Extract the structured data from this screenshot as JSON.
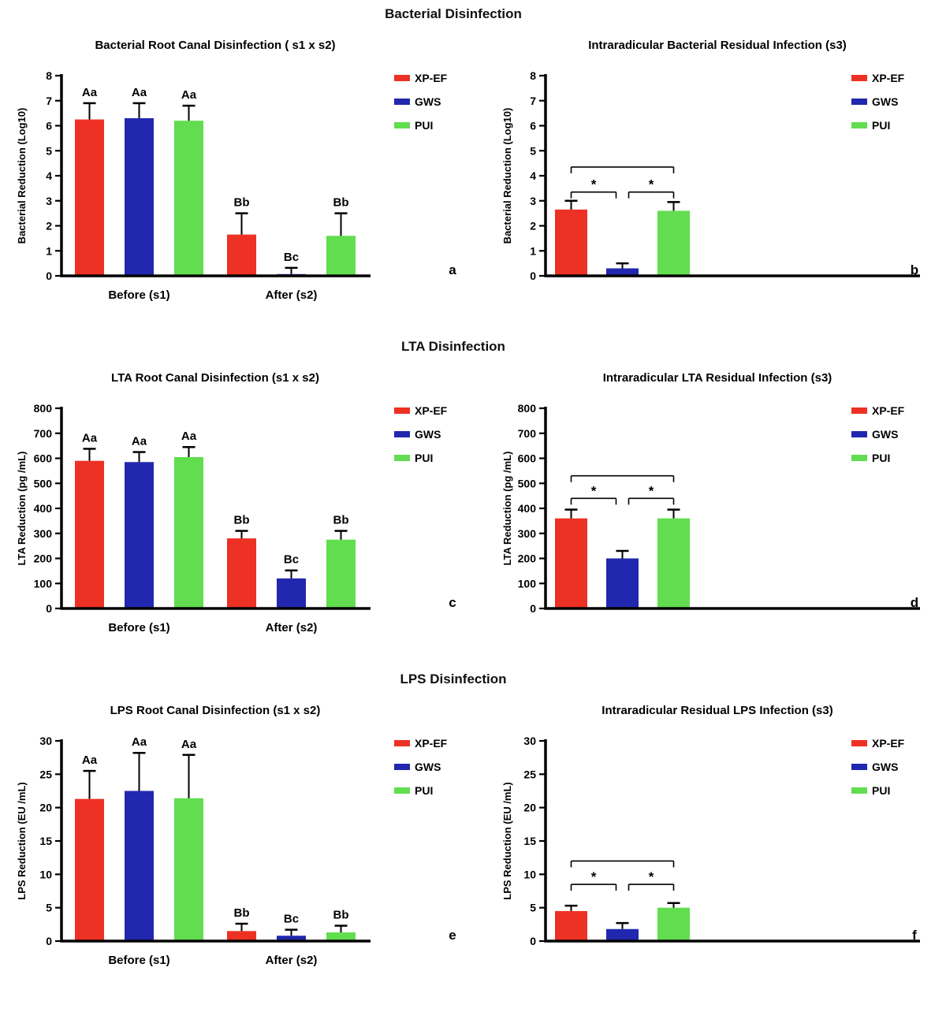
{
  "figure": {
    "sections": [
      {
        "header": "Bacterial Disinfection"
      },
      {
        "header": "LTA Disinfection"
      },
      {
        "header": "LPS Disinfection"
      }
    ]
  },
  "colors": {
    "xp_ef": "#ed3124",
    "gws": "#2127ae",
    "pui": "#61dd4f",
    "axis": "#000000"
  },
  "legend_items": [
    {
      "label": "XP-EF",
      "color": "xp_ef"
    },
    {
      "label": "GWS",
      "color": "gws"
    },
    {
      "label": "PUI",
      "color": "pui"
    }
  ],
  "chart_data": [
    {
      "id": "a",
      "type": "bar",
      "kind": "grouped",
      "title": "Bacterial Root  Canal Disinfection ( s1 x s2)",
      "ylabel": "Bacterial Reduction (Log10)",
      "ylim": [
        0,
        8
      ],
      "yticks": [
        0,
        1,
        2,
        3,
        4,
        5,
        6,
        7,
        8
      ],
      "categories": [
        "Before (s1)",
        "After (s2)"
      ],
      "series": [
        {
          "name": "XP-EF",
          "color": "xp_ef",
          "values": [
            6.25,
            1.65
          ],
          "errors": [
            0.65,
            0.85
          ],
          "labels": [
            "Aa",
            "Bb"
          ]
        },
        {
          "name": "GWS",
          "color": "gws",
          "values": [
            6.3,
            0.07
          ],
          "errors": [
            0.6,
            0.25
          ],
          "labels": [
            "Aa",
            "Bc"
          ]
        },
        {
          "name": "PUI",
          "color": "pui",
          "values": [
            6.2,
            1.6
          ],
          "errors": [
            0.6,
            0.9
          ],
          "labels": [
            "Aa",
            "Bb"
          ]
        }
      ],
      "panel_label": "a",
      "legend_position": "right"
    },
    {
      "id": "b",
      "type": "bar",
      "kind": "single",
      "title": "Intraradicular Bacterial Residual Infection (s3)",
      "ylabel": "Bacterial Reduction (Log10)",
      "ylim": [
        0,
        8
      ],
      "yticks": [
        0,
        1,
        2,
        3,
        4,
        5,
        6,
        7,
        8
      ],
      "categories": [
        "XP-EF",
        "GWS",
        "PUI"
      ],
      "values": [
        2.65,
        0.3,
        2.6
      ],
      "errors": [
        0.35,
        0.2,
        0.35
      ],
      "bar_colors": [
        "xp_ef",
        "gws",
        "pui"
      ],
      "brackets": [
        {
          "from": 0,
          "to": 2,
          "y": 4.35,
          "label": ""
        },
        {
          "from": 0,
          "to": 1,
          "y": 3.35,
          "label": "*"
        },
        {
          "from": 1,
          "to": 2,
          "y": 3.35,
          "label": "*"
        }
      ],
      "panel_label": "b",
      "legend_position": "right"
    },
    {
      "id": "c",
      "type": "bar",
      "kind": "grouped",
      "title": "LTA  Root  Canal Disinfection (s1 x s2)",
      "ylabel": "LTA Reduction (pg /mL)",
      "ylim": [
        0,
        800
      ],
      "yticks": [
        0,
        100,
        200,
        300,
        400,
        500,
        600,
        700,
        800
      ],
      "categories": [
        "Before (s1)",
        "After (s2)"
      ],
      "series": [
        {
          "name": "XP-EF",
          "color": "xp_ef",
          "values": [
            590,
            280
          ],
          "errors": [
            48,
            30
          ],
          "labels": [
            "Aa",
            "Bb"
          ]
        },
        {
          "name": "GWS",
          "color": "gws",
          "values": [
            585,
            120
          ],
          "errors": [
            40,
            32
          ],
          "labels": [
            "Aa",
            "Bc"
          ]
        },
        {
          "name": "PUI",
          "color": "pui",
          "values": [
            605,
            275
          ],
          "errors": [
            40,
            35
          ],
          "labels": [
            "Aa",
            "Bb"
          ]
        }
      ],
      "panel_label": "c",
      "legend_position": "right"
    },
    {
      "id": "d",
      "type": "bar",
      "kind": "single",
      "title": "Intraradicular  LTA Residual Infection (s3)",
      "ylabel": "LTA Reduction (pg /mL)",
      "ylim": [
        0,
        800
      ],
      "yticks": [
        0,
        100,
        200,
        300,
        400,
        500,
        600,
        700,
        800
      ],
      "categories": [
        "XP-EF",
        "GWS",
        "PUI"
      ],
      "values": [
        360,
        200,
        360
      ],
      "errors": [
        35,
        30,
        35
      ],
      "bar_colors": [
        "xp_ef",
        "gws",
        "pui"
      ],
      "brackets": [
        {
          "from": 0,
          "to": 2,
          "y": 530,
          "label": ""
        },
        {
          "from": 0,
          "to": 1,
          "y": 440,
          "label": "*"
        },
        {
          "from": 1,
          "to": 2,
          "y": 440,
          "label": "*"
        }
      ],
      "panel_label": "d",
      "legend_position": "right"
    },
    {
      "id": "e",
      "type": "bar",
      "kind": "grouped",
      "title": "LPS Root Canal Disinfection (s1 x s2)",
      "ylabel": "LPS  Reduction (EU /mL)",
      "ylim": [
        0,
        30
      ],
      "yticks": [
        0,
        5,
        10,
        15,
        20,
        25,
        30
      ],
      "categories": [
        "Before (s1)",
        "After (s2)"
      ],
      "series": [
        {
          "name": "XP-EF",
          "color": "xp_ef",
          "values": [
            21.3,
            1.5
          ],
          "errors": [
            4.2,
            1.1
          ],
          "labels": [
            "Aa",
            "Bb"
          ]
        },
        {
          "name": "GWS",
          "color": "gws",
          "values": [
            22.5,
            0.8
          ],
          "errors": [
            5.7,
            0.9
          ],
          "labels": [
            "Aa",
            "Bc"
          ]
        },
        {
          "name": "PUI",
          "color": "pui",
          "values": [
            21.4,
            1.3
          ],
          "errors": [
            6.5,
            1.0
          ],
          "labels": [
            "Aa",
            "Bb"
          ]
        }
      ],
      "panel_label": "e",
      "legend_position": "right"
    },
    {
      "id": "f",
      "type": "bar",
      "kind": "single",
      "title": "Intraradicular Residual LPS Infection (s3)",
      "ylabel": "LPS  Reduction (EU /mL)",
      "ylim": [
        0,
        30
      ],
      "yticks": [
        0,
        5,
        10,
        15,
        20,
        25,
        30
      ],
      "categories": [
        "XP-EF",
        "GWS",
        "PUI"
      ],
      "values": [
        4.5,
        1.8,
        5.0
      ],
      "errors": [
        0.8,
        0.9,
        0.7
      ],
      "bar_colors": [
        "xp_ef",
        "gws",
        "pui"
      ],
      "brackets": [
        {
          "from": 0,
          "to": 2,
          "y": 12,
          "label": ""
        },
        {
          "from": 0,
          "to": 1,
          "y": 8.5,
          "label": "*"
        },
        {
          "from": 1,
          "to": 2,
          "y": 8.5,
          "label": "*"
        }
      ],
      "panel_label": "f",
      "legend_position": "right"
    }
  ]
}
